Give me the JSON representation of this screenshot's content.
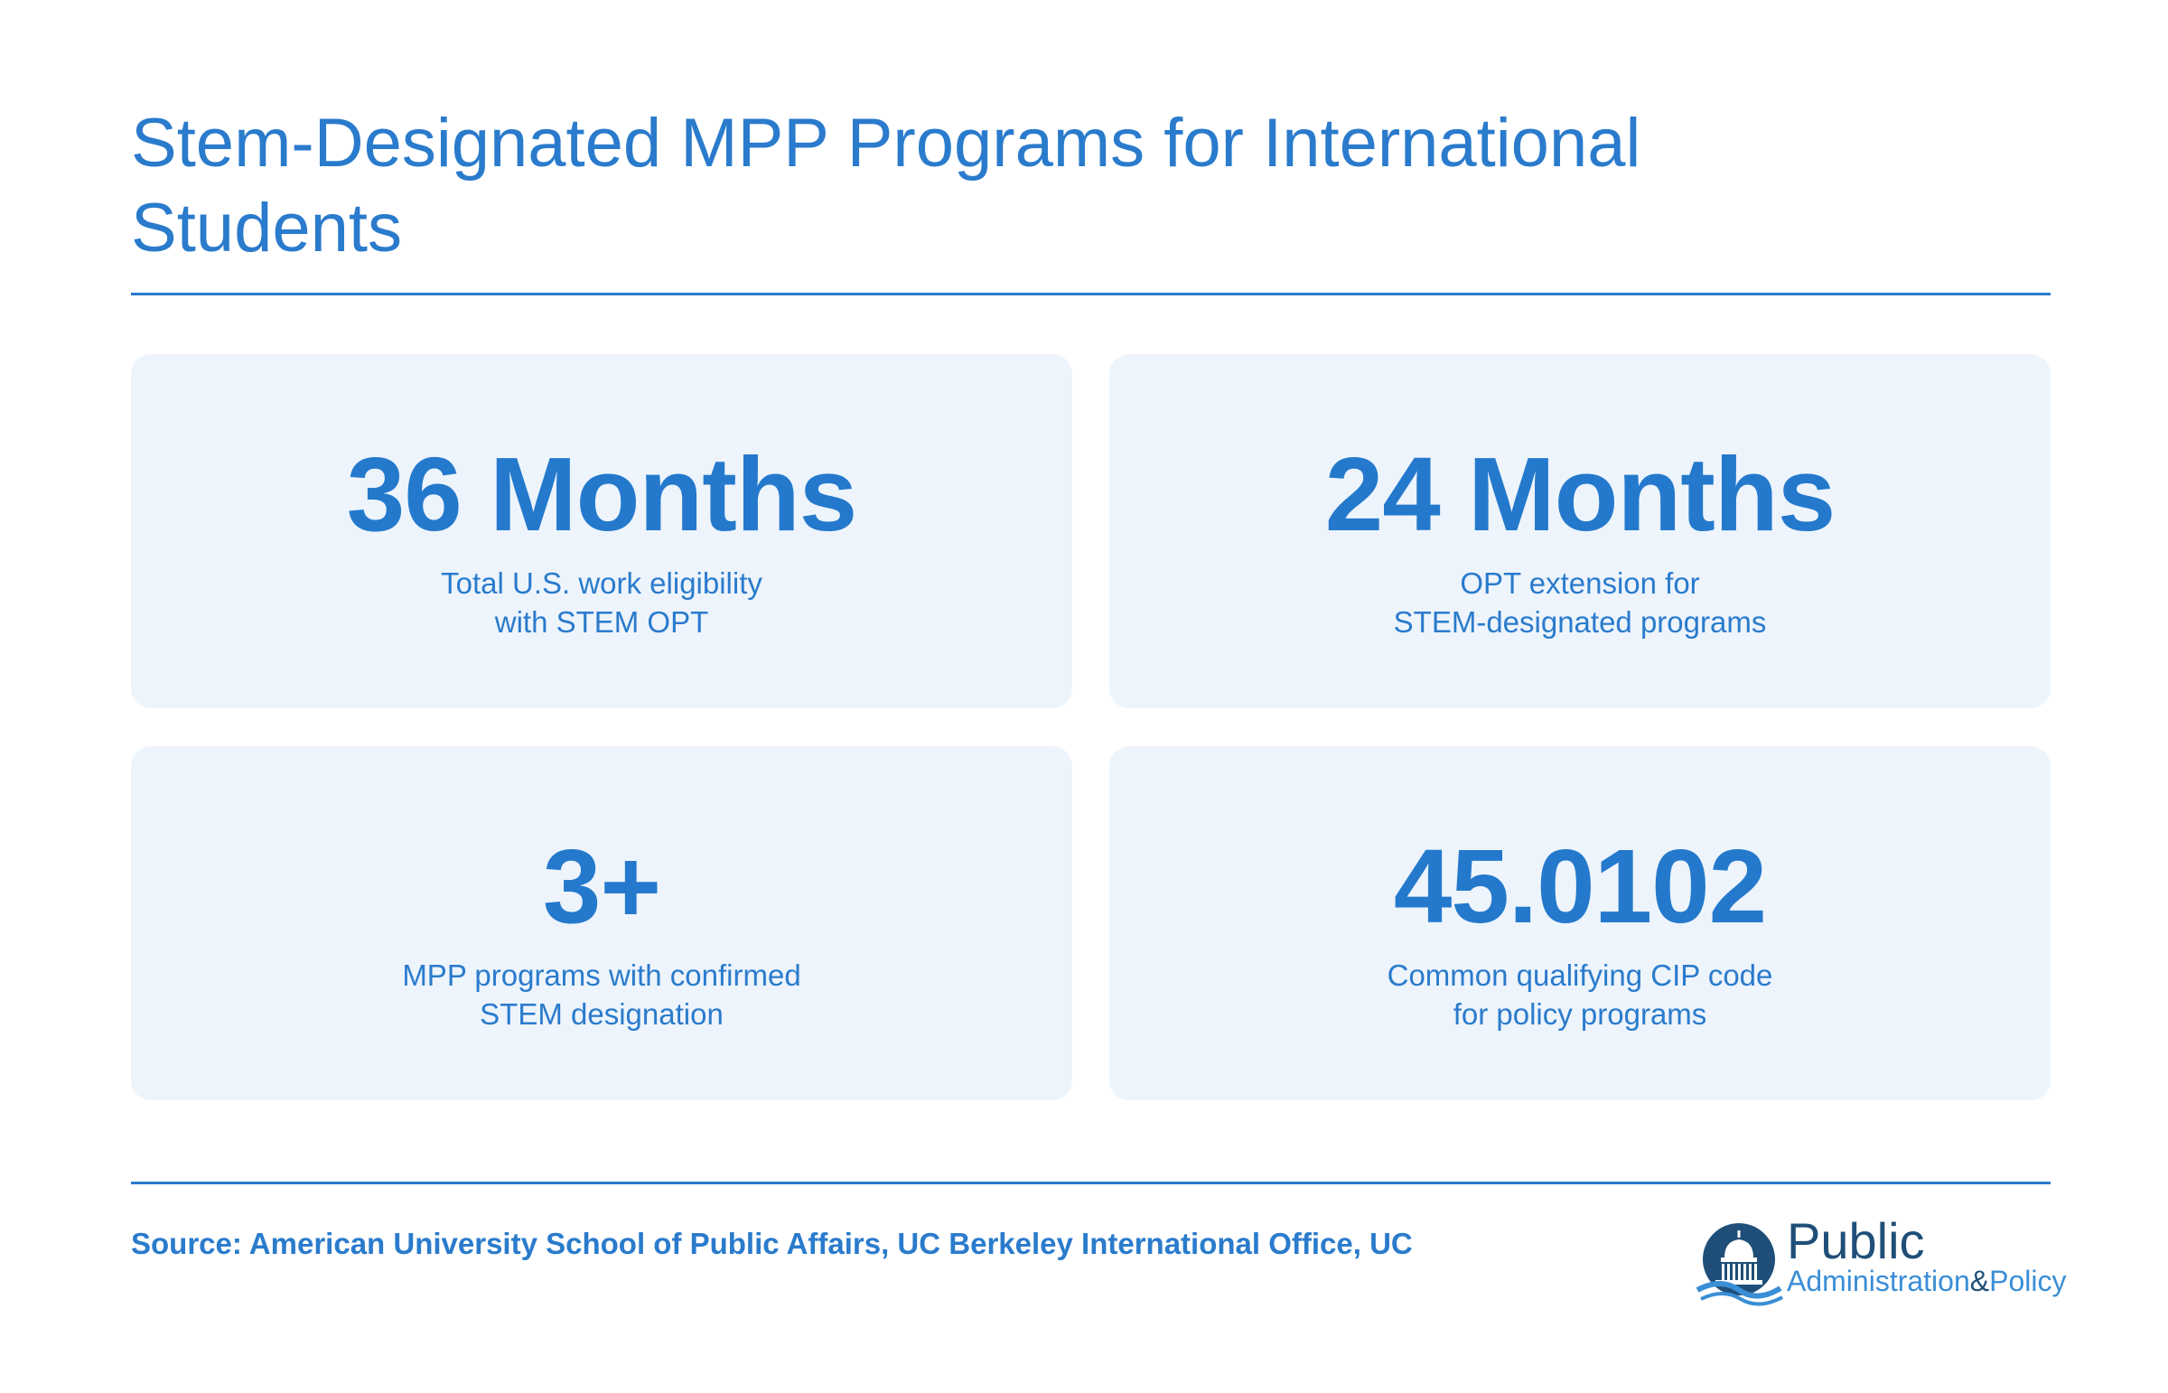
{
  "title": "Stem-Designated MPP Programs for International Students",
  "cards": [
    {
      "value": "36 Months",
      "desc_line1": "Total U.S. work eligibility",
      "desc_line2": "with STEM OPT"
    },
    {
      "value": "24 Months",
      "desc_line1": "OPT extension for",
      "desc_line2": "STEM-designated programs"
    },
    {
      "value": "3+",
      "desc_line1": "MPP programs with confirmed",
      "desc_line2": "STEM designation"
    },
    {
      "value": "45.0102",
      "desc_line1": "Common qualifying CIP code",
      "desc_line2": "for policy programs"
    }
  ],
  "source": "Source: American University School of Public Affairs, UC Berkeley International Office, UC",
  "logo": {
    "main": "Public",
    "sub_left": "Administration",
    "sub_amp": "&",
    "sub_right": "Policy",
    "icon": "capitol-dome-icon"
  },
  "colors": {
    "accent": "#2a7bcc",
    "card_bg": "#edf4fc",
    "logo_dark": "#1f4f78"
  }
}
